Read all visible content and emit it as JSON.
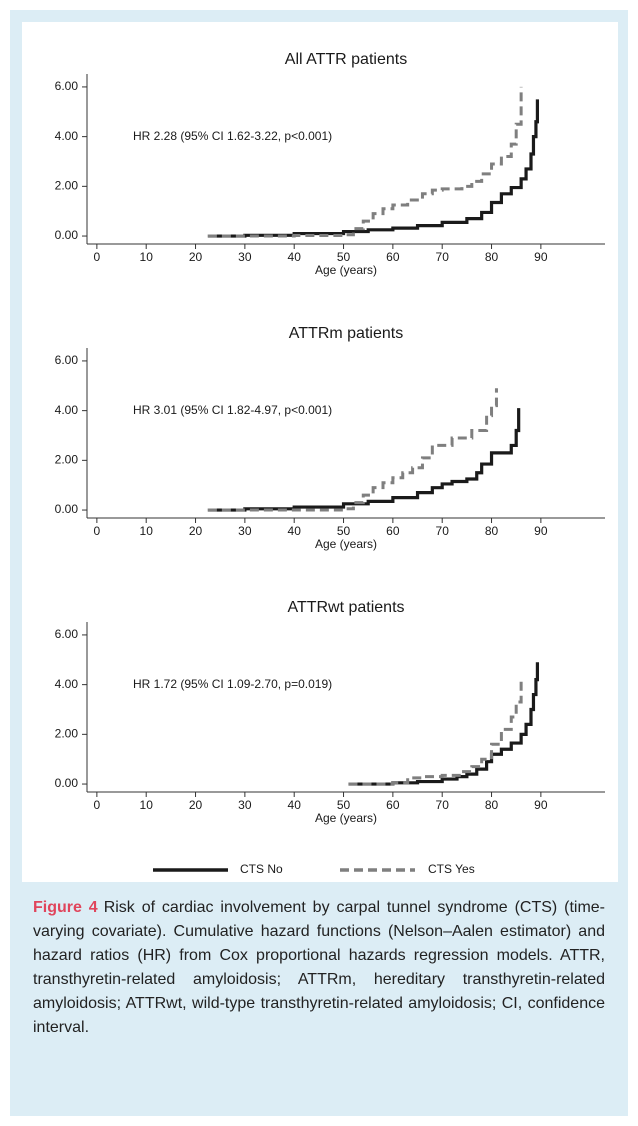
{
  "chart_data": [
    {
      "type": "line",
      "title": "All ATTR patients",
      "annotation": "HR 2.28 (95% CI 1.62-3.22, p<0.001)",
      "xlabel": "Age (years)",
      "xlim": [
        -2,
        103
      ],
      "xticks": [
        0,
        10,
        20,
        30,
        40,
        50,
        60,
        70,
        80,
        90
      ],
      "ylim": [
        -0.32,
        6.52
      ],
      "yticks": [
        {
          "value": 0,
          "label": "0.00"
        },
        {
          "value": 2,
          "label": "2.00"
        },
        {
          "value": 4,
          "label": "4.00"
        },
        {
          "value": 6,
          "label": "6.00"
        }
      ],
      "series": [
        {
          "name": "CTS No",
          "color": "#1a1a1a",
          "dashed": false,
          "x": [
            22.5,
            30,
            40,
            50,
            55,
            60,
            65,
            70,
            75,
            78,
            80,
            82,
            84,
            86,
            87,
            88,
            88.5,
            89,
            89.3
          ],
          "values": [
            0,
            0.03,
            0.1,
            0.18,
            0.25,
            0.32,
            0.42,
            0.55,
            0.7,
            0.95,
            1.35,
            1.7,
            1.95,
            2.3,
            2.7,
            3.3,
            4,
            4.6,
            5.5
          ]
        },
        {
          "name": "CTS Yes",
          "color": "#7f7f7f",
          "dashed": true,
          "x": [
            22.5,
            30,
            40,
            50,
            52,
            54,
            56,
            58,
            60,
            63,
            66,
            68,
            70,
            74,
            76,
            78,
            80,
            82,
            84,
            85,
            86
          ],
          "values": [
            0,
            0,
            0.02,
            0.05,
            0.3,
            0.6,
            0.9,
            1.1,
            1.25,
            1.45,
            1.7,
            1.85,
            1.9,
            2.0,
            2.2,
            2.5,
            2.9,
            3.2,
            3.7,
            4.5,
            6.0
          ]
        }
      ]
    },
    {
      "type": "line",
      "title": "ATTRm patients",
      "annotation": "HR 3.01 (95% CI 1.82-4.97, p<0.001)",
      "xlabel": "Age (years)",
      "xlim": [
        -2,
        103
      ],
      "xticks": [
        0,
        10,
        20,
        30,
        40,
        50,
        60,
        70,
        80,
        90
      ],
      "ylim": [
        -0.32,
        6.52
      ],
      "yticks": [
        {
          "value": 0,
          "label": "0.00"
        },
        {
          "value": 2,
          "label": "2.00"
        },
        {
          "value": 4,
          "label": "4.00"
        },
        {
          "value": 6,
          "label": "6.00"
        }
      ],
      "series": [
        {
          "color": "#1a1a1a",
          "dashed": false,
          "x": [
            22.5,
            30,
            40,
            50,
            55,
            60,
            65,
            68,
            70,
            72,
            75,
            77,
            78,
            80,
            82,
            84,
            85,
            85.5
          ],
          "values": [
            0,
            0.05,
            0.12,
            0.25,
            0.35,
            0.5,
            0.7,
            0.9,
            1.05,
            1.15,
            1.25,
            1.5,
            1.85,
            2.3,
            2.3,
            2.6,
            3.2,
            4.1
          ]
        },
        {
          "color": "#7f7f7f",
          "dashed": true,
          "x": [
            22.5,
            30,
            40,
            50,
            52,
            54,
            56,
            58,
            60,
            62,
            64,
            66,
            68,
            70,
            72,
            76,
            79,
            80,
            81
          ],
          "values": [
            0,
            0,
            0,
            0.05,
            0.3,
            0.6,
            0.9,
            1.1,
            1.3,
            1.5,
            1.7,
            2.1,
            2.6,
            2.6,
            2.9,
            3.2,
            3.8,
            4.2,
            4.9
          ]
        }
      ]
    },
    {
      "type": "line",
      "title": "ATTRwt patients",
      "annotation": "HR 1.72 (95% CI 1.09-2.70, p=0.019)",
      "xlabel": "Age (years)",
      "xlim": [
        -2,
        103
      ],
      "xticks": [
        0,
        10,
        20,
        30,
        40,
        50,
        60,
        70,
        80,
        90
      ],
      "ylim": [
        -0.32,
        6.52
      ],
      "yticks": [
        {
          "value": 0,
          "label": "0.00"
        },
        {
          "value": 2,
          "label": "2.00"
        },
        {
          "value": 4,
          "label": "4.00"
        },
        {
          "value": 6,
          "label": "6.00"
        }
      ],
      "series": [
        {
          "color": "#1a1a1a",
          "dashed": false,
          "x": [
            51,
            60,
            65,
            70,
            73,
            75,
            77,
            79,
            80,
            82,
            84,
            86,
            87,
            88,
            88.5,
            89,
            89.3
          ],
          "values": [
            0,
            0.05,
            0.1,
            0.2,
            0.3,
            0.4,
            0.6,
            0.9,
            1.2,
            1.4,
            1.65,
            2.0,
            2.4,
            3.0,
            3.6,
            4.2,
            4.9
          ]
        },
        {
          "color": "#7f7f7f",
          "dashed": true,
          "x": [
            51,
            60,
            63,
            66,
            70,
            74,
            76,
            78,
            80,
            82,
            84,
            85,
            86
          ],
          "values": [
            0,
            0.05,
            0.25,
            0.3,
            0.35,
            0.5,
            0.7,
            1.0,
            1.6,
            2.2,
            2.7,
            3.3,
            4.3
          ]
        }
      ]
    }
  ],
  "caption": {
    "label": "Figure 4",
    "text": "Risk of cardiac involvement by carpal tunnel syndrome (CTS) (time-varying covariate). Cumulative hazard functions (Nelson–Aalen estimator) and hazard ratios (HR) from Cox proportional hazards regression models. ATTR, transthyretin-related amyloidosis; ATTRm, hereditary transthyretin-related amyloidosis; ATTRwt, wild-type transthyretin-related amyloidosis; CI, confidence interval."
  }
}
